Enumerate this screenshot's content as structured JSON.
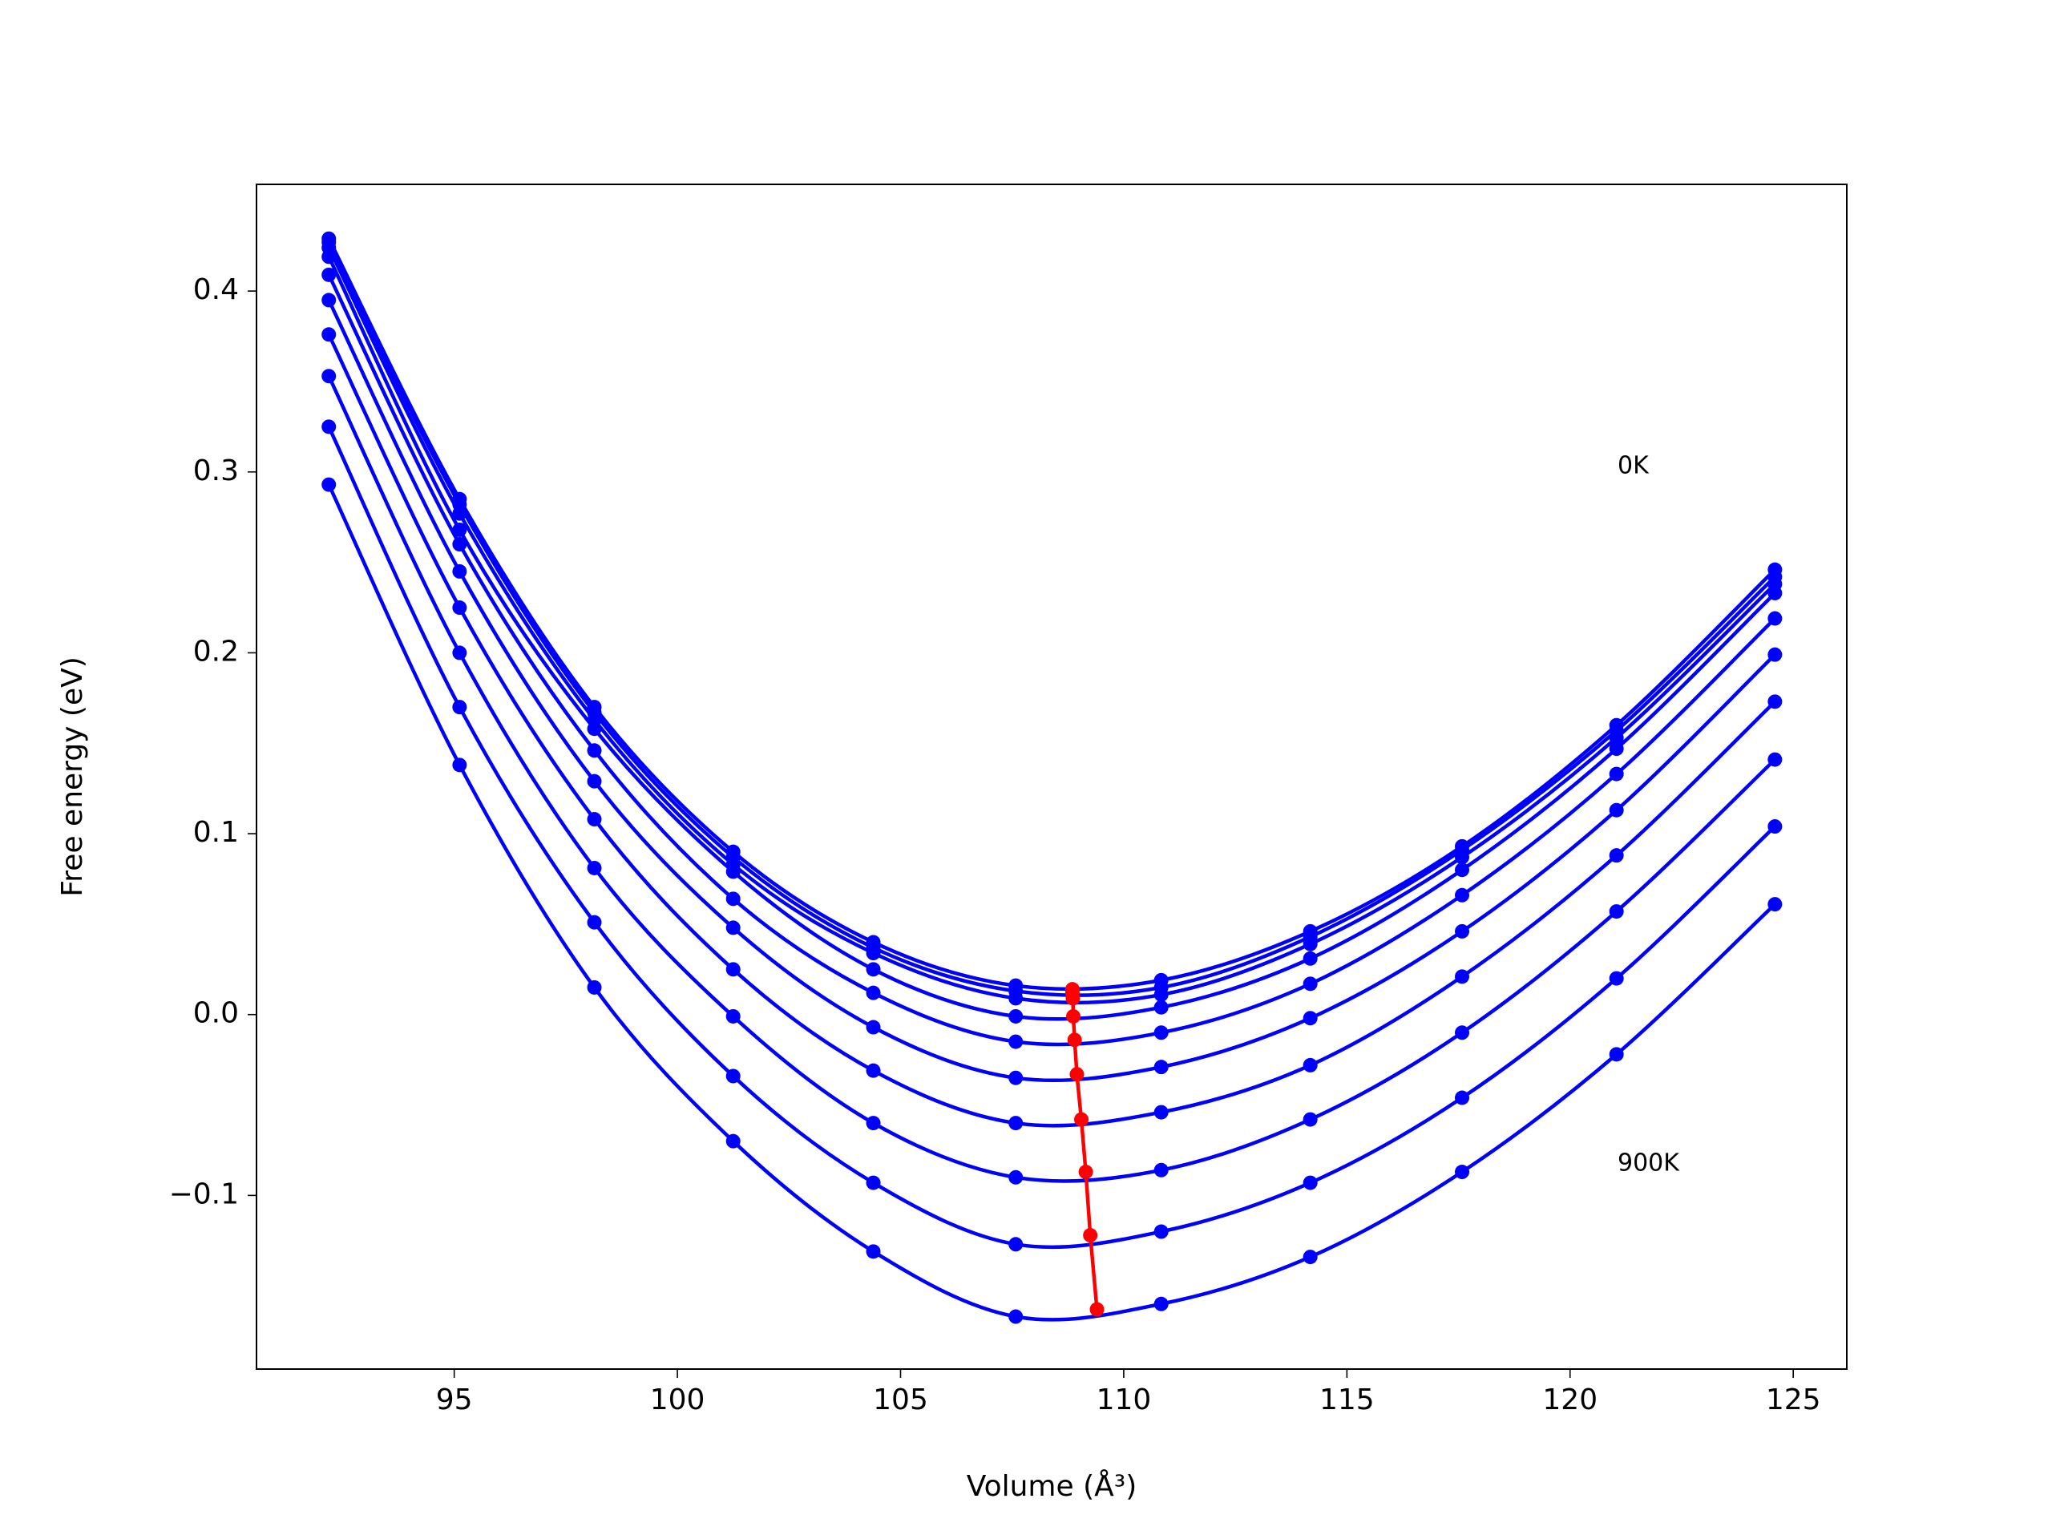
{
  "chart_data": {
    "type": "line",
    "x_label": "Volume (Å³)",
    "y_label": "Free energy (eV)",
    "x": [
      92.19,
      95.12,
      98.14,
      101.25,
      104.39,
      107.58,
      110.84,
      114.18,
      117.58,
      121.04,
      124.59
    ],
    "series": [
      {
        "color": "#0000ff",
        "values": [
          0.429,
          0.285,
          0.17,
          0.09,
          0.04,
          0.016,
          0.019,
          0.046,
          0.093,
          0.16,
          0.246
        ]
      },
      {
        "color": "#0000ff",
        "values": [
          0.427,
          0.282,
          0.167,
          0.087,
          0.037,
          0.013,
          0.015,
          0.043,
          0.091,
          0.157,
          0.242
        ]
      },
      {
        "color": "#0000ff",
        "values": [
          0.424,
          0.277,
          0.163,
          0.083,
          0.034,
          0.009,
          0.011,
          0.039,
          0.087,
          0.153,
          0.238
        ]
      },
      {
        "color": "#0000ff",
        "values": [
          0.419,
          0.268,
          0.158,
          0.079,
          0.025,
          -0.001,
          0.004,
          0.031,
          0.08,
          0.147,
          0.233
        ]
      },
      {
        "color": "#0000ff",
        "values": [
          0.409,
          0.26,
          0.146,
          0.064,
          0.012,
          -0.015,
          -0.01,
          0.017,
          0.066,
          0.133,
          0.219
        ]
      },
      {
        "color": "#0000ff",
        "values": [
          0.395,
          0.245,
          0.129,
          0.048,
          -0.007,
          -0.035,
          -0.029,
          -0.002,
          0.046,
          0.113,
          0.199
        ]
      },
      {
        "color": "#0000ff",
        "values": [
          0.376,
          0.225,
          0.108,
          0.025,
          -0.031,
          -0.06,
          -0.054,
          -0.028,
          0.021,
          0.088,
          0.173
        ]
      },
      {
        "color": "#0000ff",
        "values": [
          0.353,
          0.2,
          0.081,
          -0.001,
          -0.06,
          -0.09,
          -0.086,
          -0.058,
          -0.01,
          0.057,
          0.141
        ]
      },
      {
        "color": "#0000ff",
        "values": [
          0.325,
          0.17,
          0.051,
          -0.034,
          -0.093,
          -0.127,
          -0.12,
          -0.093,
          -0.046,
          0.02,
          0.104
        ]
      },
      {
        "color": "#0000ff",
        "values": [
          0.293,
          0.138,
          0.015,
          -0.07,
          -0.131,
          -0.167,
          -0.16,
          -0.134,
          -0.087,
          -0.022,
          0.061
        ]
      },
      {
        "color": "#ff0000",
        "x": [
          108.85,
          108.85,
          108.86,
          108.87,
          108.9,
          108.95,
          109.05,
          109.15,
          109.25,
          109.4
        ],
        "values": [
          0.014,
          0.012,
          0.009,
          -0.001,
          -0.014,
          -0.033,
          -0.058,
          -0.087,
          -0.122,
          -0.163
        ]
      }
    ],
    "annotations": [
      "0K",
      "900K"
    ],
    "xlim": [
      90.57,
      126.2
    ],
    "ylim": [
      -0.196,
      0.459
    ],
    "xticks": [
      95,
      100,
      105,
      110,
      115,
      120,
      125
    ],
    "yticks": [
      {
        "value": -0.1,
        "label": "−0.1"
      },
      {
        "value": 0,
        "label": "0.0"
      },
      0.1,
      0.2,
      0.3,
      0.4
    ]
  }
}
